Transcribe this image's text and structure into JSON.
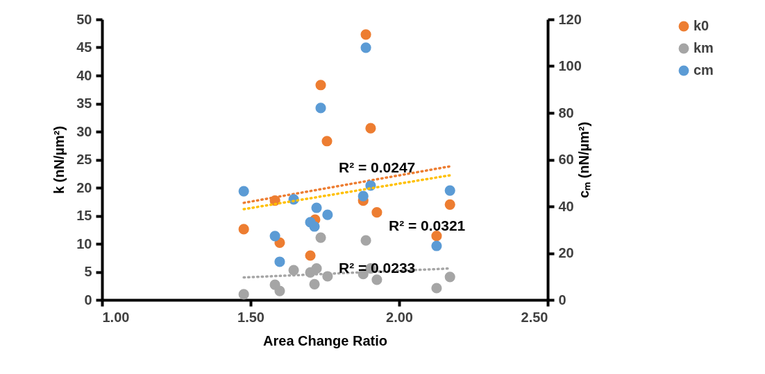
{
  "chart_data": {
    "type": "scatter",
    "xlabel": "Area Change Ratio",
    "ylabel": "k (nN/µm²)",
    "y2label": "cₘ (nN/µm²)",
    "xlim": [
      1.0,
      2.5
    ],
    "xticks": [
      {
        "value": 1.0,
        "label": "1.00"
      },
      {
        "value": 1.5,
        "label": "1.50"
      },
      {
        "value": 2.0,
        "label": "2.00"
      },
      {
        "value": 2.5,
        "label": "2.50"
      }
    ],
    "ylim": [
      0,
      50
    ],
    "yticks": [
      0,
      5,
      10,
      15,
      20,
      25,
      30,
      35,
      40,
      45,
      50
    ],
    "y2lim": [
      0,
      120
    ],
    "y2ticks": [
      0,
      20,
      40,
      60,
      80,
      100,
      120
    ],
    "marker": "circle",
    "legend": "right",
    "grid": false,
    "series": [
      {
        "name": "k0",
        "color": "#ed7d31",
        "x": [
          1.477,
          1.582,
          1.598,
          1.701,
          1.717,
          1.736,
          1.757,
          1.888,
          1.904,
          1.879,
          1.925,
          2.171,
          2.126
        ],
        "values": [
          12.6,
          17.7,
          10.2,
          7.9,
          14.3,
          38.3,
          28.3,
          47.3,
          30.6,
          17.7,
          15.6,
          17.0,
          11.4
        ]
      },
      {
        "name": "km",
        "color": "#a5a5a5",
        "x": [
          1.477,
          1.582,
          1.598,
          1.645,
          1.701,
          1.722,
          1.715,
          1.736,
          1.759,
          1.888,
          1.879,
          1.904,
          1.925,
          2.171,
          2.126
        ],
        "values": [
          1.0,
          2.7,
          1.6,
          5.3,
          4.9,
          5.6,
          2.8,
          11.1,
          4.2,
          10.6,
          4.6,
          5.6,
          3.6,
          4.1,
          2.1
        ]
      },
      {
        "name": "cm",
        "color": "#5b9bd5",
        "axis": "y2",
        "x": [
          1.477,
          1.582,
          1.598,
          1.645,
          1.722,
          1.759,
          1.701,
          1.715,
          1.736,
          1.888,
          1.879,
          1.904,
          2.171,
          2.126
        ],
        "values": [
          46.5,
          27.3,
          16.3,
          43.0,
          39.4,
          36.4,
          33.2,
          31.4,
          82.1,
          107.9,
          44.4,
          48.9,
          46.8,
          23.1
        ]
      },
      {
        "type": "line",
        "marker": "none",
        "line_style": "dotted",
        "color": "#ed7d31",
        "x": [
          1.477,
          2.171
        ],
        "values": [
          17.3,
          23.8
        ]
      },
      {
        "type": "line",
        "marker": "none",
        "line_style": "dotted",
        "color": "#ffc000",
        "axis": "y2",
        "x": [
          1.477,
          2.171
        ],
        "values": [
          38.8,
          53.3
        ]
      },
      {
        "type": "line",
        "marker": "none",
        "line_style": "dotted",
        "color": "#a5a5a5",
        "x": [
          1.477,
          2.171
        ],
        "values": [
          4.0,
          5.6
        ]
      }
    ],
    "annotations": [
      "R² = 0.0247",
      "R² = 0.0321",
      "R² = 0.0233"
    ]
  }
}
